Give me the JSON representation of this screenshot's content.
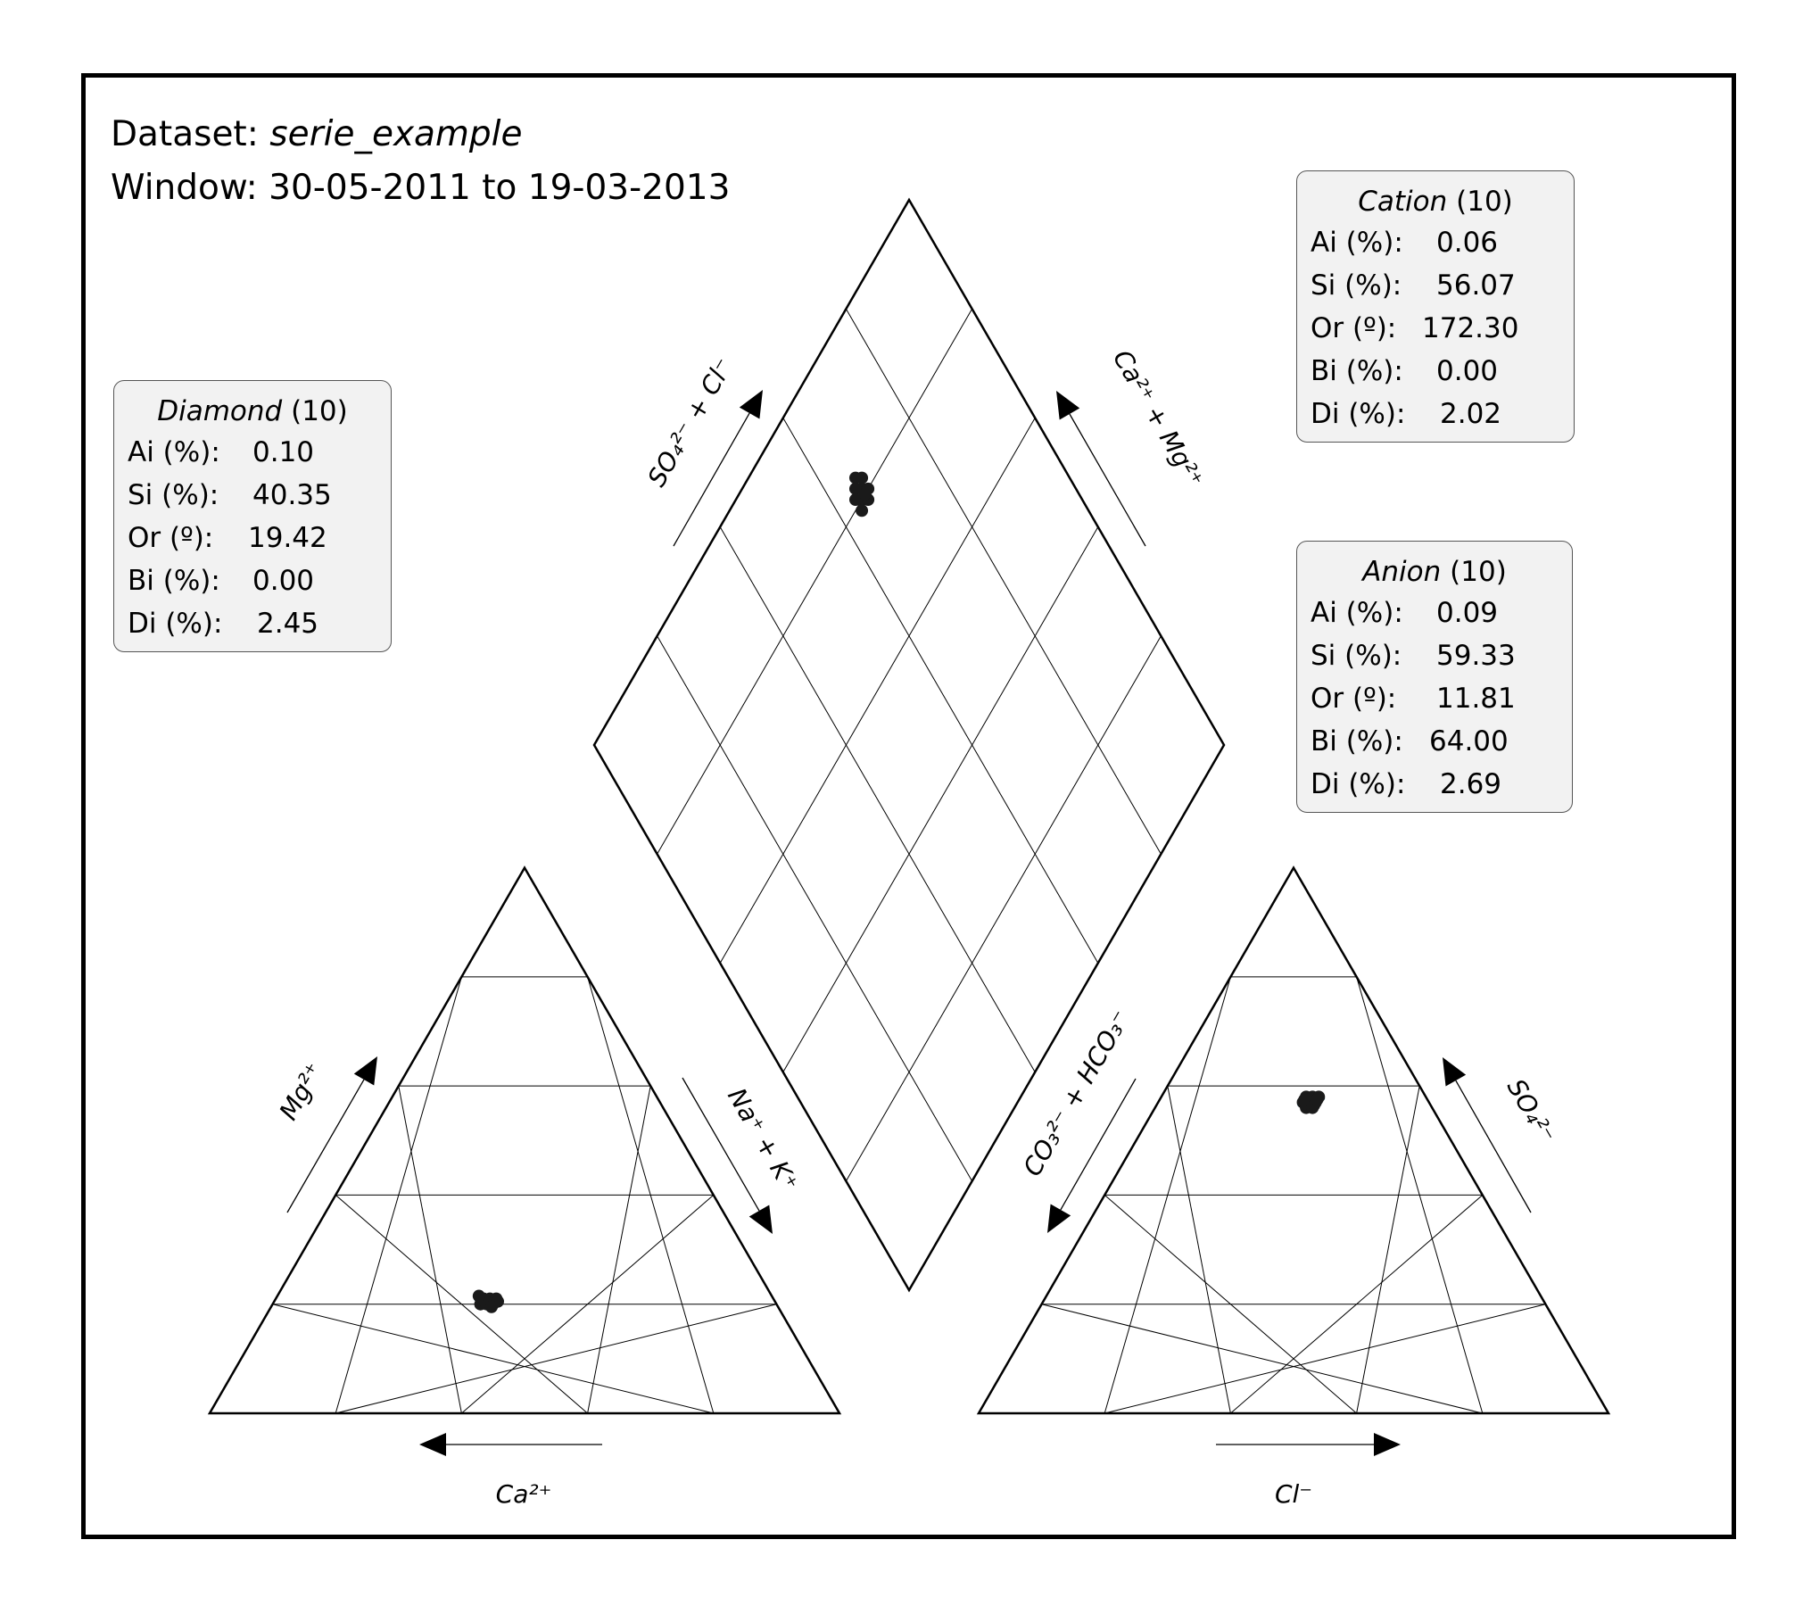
{
  "header": {
    "dataset_label": "Dataset:",
    "dataset_name": "serie_example",
    "window_label": "Window: 30-05-2011 to 19-03-2013"
  },
  "stats_boxes": {
    "diamond": {
      "title": "Diamond",
      "count": "(10)",
      "rows": [
        {
          "key": "Ai (%):",
          "value": "0.10"
        },
        {
          "key": "Si (%):",
          "value": "40.35"
        },
        {
          "key": "Or (º):",
          "value": "19.42"
        },
        {
          "key": "Bi (%):",
          "value": "0.00"
        },
        {
          "key": "Di (%):",
          "value": "2.45"
        }
      ]
    },
    "cation": {
      "title": "Cation",
      "count": "(10)",
      "rows": [
        {
          "key": "Ai (%):",
          "value": "0.06"
        },
        {
          "key": "Si (%):",
          "value": "56.07"
        },
        {
          "key": "Or (º):",
          "value": "172.30"
        },
        {
          "key": "Bi (%):",
          "value": "0.00"
        },
        {
          "key": "Di (%):",
          "value": "2.02"
        }
      ]
    },
    "anion": {
      "title": "Anion",
      "count": "(10)",
      "rows": [
        {
          "key": "Ai (%):",
          "value": "0.09"
        },
        {
          "key": "Si (%):",
          "value": "59.33"
        },
        {
          "key": "Or (º):",
          "value": "11.81"
        },
        {
          "key": "Bi (%):",
          "value": "64.00"
        },
        {
          "key": "Di (%):",
          "value": "2.69"
        }
      ]
    }
  },
  "axis_labels": {
    "ca": "Ca²⁺",
    "mg": "Mg²⁺",
    "nak": "Na⁺ + K⁺",
    "cl": "Cl⁻",
    "so4": "SO₄²⁻",
    "co3hco3": "CO₃²⁻ + HCO₃⁻",
    "so4cl": "SO₄²⁻ + Cl⁻",
    "camg": "Ca²⁺ + Mg²⁺"
  },
  "colors": {
    "marker": "#1a1a1a",
    "trend": "#5ab4d6",
    "trend_diamond": "#4caf50",
    "panel_bg": "#f2f2f2"
  },
  "chart_data": {
    "type": "scatter",
    "subtype": "piper-diagram",
    "grid_step_percent": 20,
    "cation_triangle": {
      "axes": [
        "Ca²⁺",
        "Mg²⁺",
        "Na⁺ + K⁺"
      ],
      "points": [
        {
          "ca": 46,
          "mg": 20,
          "nak": 34
        },
        {
          "ca": 45,
          "mg": 21,
          "nak": 34
        },
        {
          "ca": 46,
          "mg": 21,
          "nak": 33
        },
        {
          "ca": 44,
          "mg": 21,
          "nak": 35
        },
        {
          "ca": 45,
          "mg": 20,
          "nak": 35
        },
        {
          "ca": 47,
          "mg": 20,
          "nak": 33
        },
        {
          "ca": 46,
          "mg": 20.5,
          "nak": 33.5
        },
        {
          "ca": 44,
          "mg": 20.5,
          "nak": 35.5
        },
        {
          "ca": 45.5,
          "mg": 19.5,
          "nak": 35
        },
        {
          "ca": 46.5,
          "mg": 21.5,
          "nak": 32
        }
      ]
    },
    "anion_triangle": {
      "axes": [
        "CO₃²⁻ + HCO₃⁻",
        "SO₄²⁻",
        "Cl⁻"
      ],
      "points": [
        {
          "hco3": 20,
          "so4": 57,
          "cl": 23
        },
        {
          "hco3": 19,
          "so4": 58,
          "cl": 23
        },
        {
          "hco3": 18,
          "so4": 58,
          "cl": 24
        },
        {
          "hco3": 20,
          "so4": 56,
          "cl": 24
        },
        {
          "hco3": 18,
          "so4": 57,
          "cl": 25
        },
        {
          "hco3": 19,
          "so4": 56,
          "cl": 25
        },
        {
          "hco3": 17,
          "so4": 58,
          "cl": 25
        },
        {
          "hco3": 19.5,
          "so4": 57.5,
          "cl": 23
        },
        {
          "hco3": 18.5,
          "so4": 56.5,
          "cl": 25
        },
        {
          "hco3": 17.5,
          "so4": 57.5,
          "cl": 25
        }
      ]
    },
    "diamond_points": [
      {
        "so4cl": 80,
        "camg": 65
      },
      {
        "so4cl": 81,
        "camg": 66
      },
      {
        "so4cl": 82,
        "camg": 65
      },
      {
        "so4cl": 80,
        "camg": 67
      },
      {
        "so4cl": 79,
        "camg": 66
      },
      {
        "so4cl": 81,
        "camg": 64
      },
      {
        "so4cl": 83,
        "camg": 66
      },
      {
        "so4cl": 80,
        "camg": 66
      },
      {
        "so4cl": 82,
        "camg": 67
      },
      {
        "so4cl": 79,
        "camg": 64
      }
    ]
  }
}
